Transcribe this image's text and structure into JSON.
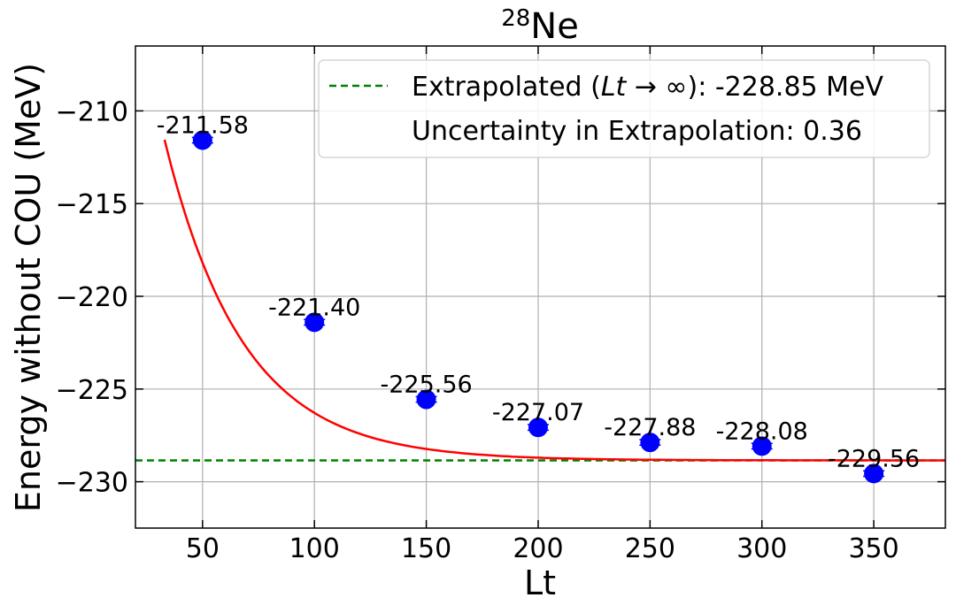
{
  "chart_data": {
    "type": "scatter",
    "title_superscript": "28",
    "title_main": "Ne",
    "xlabel": "Lt",
    "ylabel": "Energy without COU (MeV)",
    "xlim": [
      20,
      382
    ],
    "ylim": [
      -232.5,
      -206.5
    ],
    "xticks": [
      50,
      100,
      150,
      200,
      250,
      300,
      350
    ],
    "yticks": [
      -210,
      -215,
      -220,
      -225,
      -230
    ],
    "grid": true,
    "points": [
      {
        "x": 50,
        "y": -211.58,
        "err": 0.15,
        "label": "-211.58"
      },
      {
        "x": 100,
        "y": -221.4,
        "err": 0.15,
        "label": "-221.40"
      },
      {
        "x": 150,
        "y": -225.56,
        "err": 0.15,
        "label": "-225.56"
      },
      {
        "x": 200,
        "y": -227.07,
        "err": 0.15,
        "label": "-227.07"
      },
      {
        "x": 250,
        "y": -227.88,
        "err": 0.15,
        "label": "-227.88"
      },
      {
        "x": 300,
        "y": -228.08,
        "err": 0.15,
        "label": "-228.08"
      },
      {
        "x": 350,
        "y": -229.56,
        "err": 0.15,
        "label": "-229.56"
      }
    ],
    "fit": {
      "asymptote": -228.85,
      "amplitude": 44.3,
      "decay": 0.0285,
      "color": "#ff0000"
    },
    "extrapolated_value": -228.85,
    "legend": {
      "position": "top-right",
      "entries": [
        {
          "prefix": "Extrapolated (",
          "italic": "Lt",
          "suffix": " → ∞): -228.85 MeV"
        },
        {
          "text": "Uncertainty in Extrapolation: 0.36"
        }
      ]
    },
    "colors": {
      "points": "#0000ff",
      "fit": "#ff0000",
      "extrapolation": "#008000",
      "grid": "#b0b0b0"
    }
  }
}
